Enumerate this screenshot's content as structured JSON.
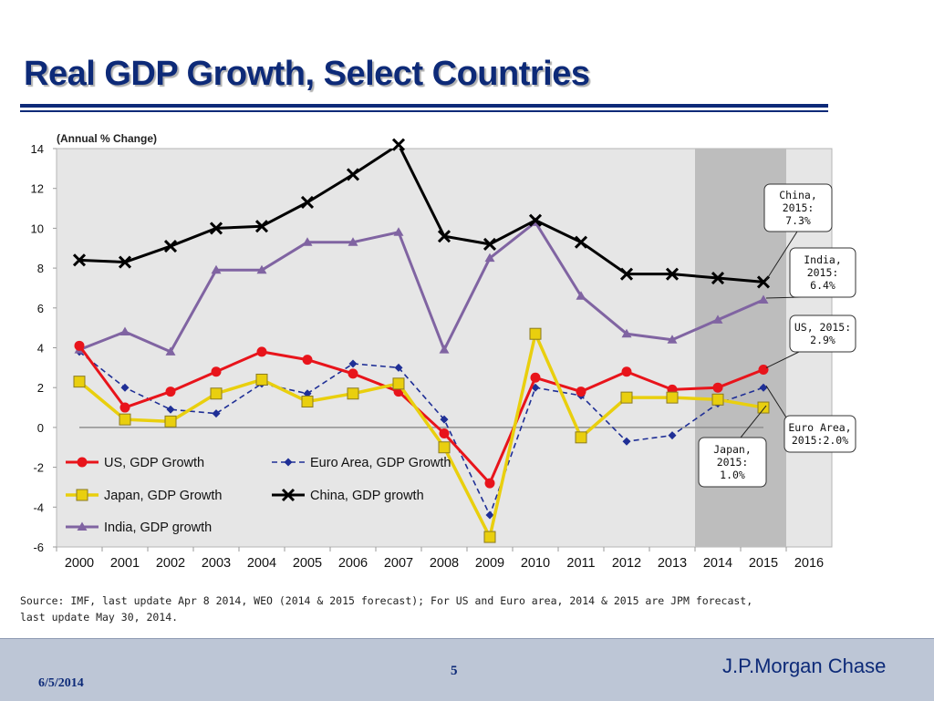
{
  "page": {
    "title": "Real GDP Growth, Select Countries",
    "source_line1": "Source: IMF, last update Apr 8 2014, WEO (2014 & 2015 forecast); For US and Euro area, 2014 & 2015 are JPM forecast,",
    "source_line2": "last update May 30, 2014."
  },
  "footer": {
    "date": "6/5/2014",
    "page_number": "5",
    "brand": "J.P.Morgan Chase"
  },
  "chart_data": {
    "type": "line",
    "unit_label": "(Annual % Change)",
    "categories": [
      "2000",
      "2001",
      "2002",
      "2003",
      "2004",
      "2005",
      "2006",
      "2007",
      "2008",
      "2009",
      "2010",
      "2011",
      "2012",
      "2013",
      "2014",
      "2015",
      "2016"
    ],
    "ylim": [
      -6,
      14
    ],
    "yticks": [
      -6,
      -4,
      -2,
      0,
      2,
      4,
      6,
      8,
      10,
      12,
      14
    ],
    "grid": false,
    "plot_background": "#e6e6e6",
    "forecast_shade": {
      "from": "2014",
      "to": "2015",
      "color": "#bdbdbd"
    },
    "legend_position": "bottom-left",
    "series": [
      {
        "name": "US, GDP Growth",
        "color": "#e8141b",
        "marker": "circle",
        "dash": "solid",
        "values": [
          4.1,
          1.0,
          1.8,
          2.8,
          3.8,
          3.4,
          2.7,
          1.8,
          -0.3,
          -2.8,
          2.5,
          1.8,
          2.8,
          1.9,
          2.0,
          2.9,
          null
        ]
      },
      {
        "name": "Euro Area, GDP Growth",
        "color": "#1f2f96",
        "marker": "diamond",
        "dash": "dashed",
        "values": [
          3.8,
          2.0,
          0.9,
          0.7,
          2.2,
          1.7,
          3.2,
          3.0,
          0.4,
          -4.4,
          2.0,
          1.6,
          -0.7,
          -0.4,
          1.2,
          2.0,
          null
        ]
      },
      {
        "name": "Japan, GDP Growth",
        "color": "#e9cf0e",
        "marker": "square",
        "dash": "solid",
        "values": [
          2.3,
          0.4,
          0.3,
          1.7,
          2.4,
          1.3,
          1.7,
          2.2,
          -1.0,
          -5.5,
          4.7,
          -0.5,
          1.5,
          1.5,
          1.4,
          1.0,
          null
        ]
      },
      {
        "name": "China, GDP growth",
        "color": "#000000",
        "marker": "x",
        "dash": "solid",
        "values": [
          8.4,
          8.3,
          9.1,
          10.0,
          10.1,
          11.3,
          12.7,
          14.2,
          9.6,
          9.2,
          10.4,
          9.3,
          7.7,
          7.7,
          7.5,
          7.3,
          null
        ]
      },
      {
        "name": "India, GDP growth",
        "color": "#8064a2",
        "marker": "triangle",
        "dash": "solid",
        "values": [
          3.9,
          4.8,
          3.8,
          7.9,
          7.9,
          9.3,
          9.3,
          9.8,
          3.9,
          8.5,
          10.3,
          6.6,
          4.7,
          4.4,
          5.4,
          6.4,
          null
        ]
      }
    ],
    "callouts": [
      {
        "lines": [
          "China,",
          "2015:",
          "7.3%"
        ],
        "series": "China, GDP growth",
        "category": "2015"
      },
      {
        "lines": [
          "India,",
          "2015:",
          "6.4%"
        ],
        "series": "India, GDP growth",
        "category": "2015"
      },
      {
        "lines": [
          "US, 2015:",
          "2.9%"
        ],
        "series": "US, GDP Growth",
        "category": "2015"
      },
      {
        "lines": [
          "Euro Area,",
          "2015:2.0%"
        ],
        "series": "Euro Area, GDP Growth",
        "category": "2015"
      },
      {
        "lines": [
          "Japan,",
          "2015:",
          "1.0%"
        ],
        "series": "Japan, GDP Growth",
        "category": "2015"
      }
    ]
  }
}
